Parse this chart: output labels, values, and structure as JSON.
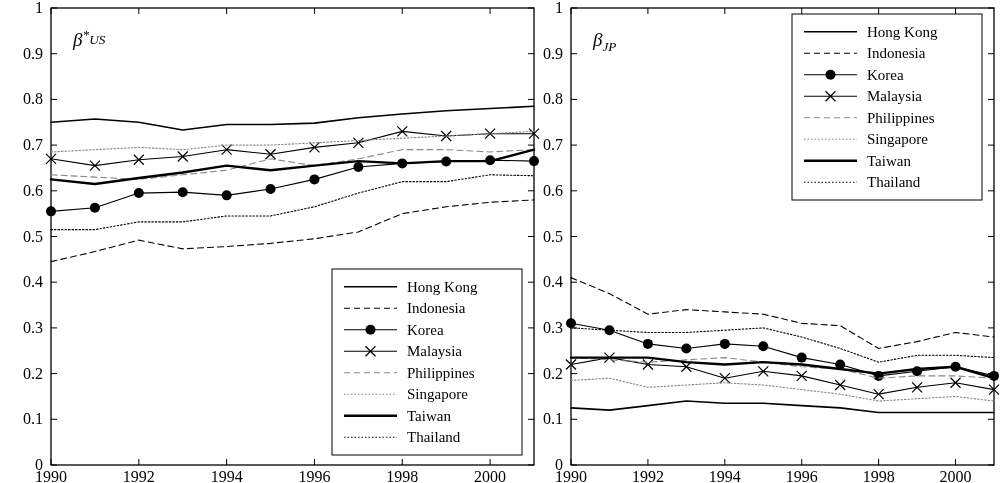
{
  "chart_data": [
    {
      "type": "line",
      "title": "β$^{*}$$_{US}$",
      "x": [
        1990,
        1991,
        1992,
        1993,
        1994,
        1995,
        1996,
        1997,
        1998,
        1999,
        2000,
        2001
      ],
      "xlim": [
        1990,
        2001
      ],
      "xticks": [
        1990,
        1992,
        1994,
        1996,
        1998,
        2000
      ],
      "ylim": [
        0,
        1
      ],
      "yticks": [
        0,
        0.1,
        0.2,
        0.3,
        0.4,
        0.5,
        0.6,
        0.7,
        0.8,
        0.9,
        1
      ],
      "grid": false,
      "legend": "bottom right",
      "series": [
        {
          "name": "Hong Kong",
          "color": "#000000",
          "line_style": "solid",
          "marker": "none",
          "values": [
            0.75,
            0.757,
            0.75,
            0.733,
            0.745,
            0.745,
            0.748,
            0.76,
            0.768,
            0.775,
            0.78,
            0.785
          ]
        },
        {
          "name": "Indonesia",
          "color": "#000000",
          "line_style": "dashed",
          "marker": "none",
          "values": [
            0.445,
            0.467,
            0.492,
            0.473,
            0.478,
            0.485,
            0.495,
            0.51,
            0.55,
            0.565,
            0.575,
            0.58
          ]
        },
        {
          "name": "Korea",
          "color": "#000000",
          "line_style": "solid",
          "marker": "circle",
          "values": [
            0.555,
            0.563,
            0.595,
            0.597,
            0.59,
            0.604,
            0.625,
            0.652,
            0.66,
            0.664,
            0.667,
            0.665
          ]
        },
        {
          "name": "Malaysia",
          "color": "#000000",
          "line_style": "solid",
          "marker": "cross",
          "values": [
            0.67,
            0.655,
            0.668,
            0.675,
            0.69,
            0.68,
            0.695,
            0.705,
            0.73,
            0.72,
            0.725,
            0.725
          ]
        },
        {
          "name": "Philippines",
          "color": "#888888",
          "line_style": "dashed",
          "marker": "none",
          "values": [
            0.635,
            0.63,
            0.625,
            0.635,
            0.645,
            0.67,
            0.655,
            0.67,
            0.69,
            0.69,
            0.685,
            0.69
          ]
        },
        {
          "name": "Singapore",
          "color": "#888888",
          "line_style": "dotted",
          "marker": "none",
          "values": [
            0.685,
            0.69,
            0.695,
            0.69,
            0.7,
            0.7,
            0.705,
            0.71,
            0.715,
            0.72,
            0.725,
            0.73
          ]
        },
        {
          "name": "Taiwan",
          "color": "#000000",
          "line_style": "solid",
          "marker": "none",
          "values": [
            0.625,
            0.615,
            0.628,
            0.64,
            0.655,
            0.645,
            0.655,
            0.665,
            0.66,
            0.665,
            0.665,
            0.69
          ]
        },
        {
          "name": "Thailand",
          "color": "#000000",
          "line_style": "dotted",
          "marker": "none",
          "values": [
            0.515,
            0.515,
            0.532,
            0.532,
            0.545,
            0.545,
            0.565,
            0.595,
            0.62,
            0.62,
            0.635,
            0.633
          ]
        }
      ]
    },
    {
      "type": "line",
      "title": "β$_{JP}$",
      "x": [
        1990,
        1991,
        1992,
        1993,
        1994,
        1995,
        1996,
        1997,
        1998,
        1999,
        2000,
        2001
      ],
      "xlim": [
        1990,
        2001
      ],
      "xticks": [
        1990,
        1992,
        1994,
        1996,
        1998,
        2000
      ],
      "ylim": [
        0,
        1
      ],
      "yticks": [
        0,
        0.1,
        0.2,
        0.3,
        0.4,
        0.5,
        0.6,
        0.7,
        0.8,
        0.9,
        1
      ],
      "grid": false,
      "legend": "top right",
      "series": [
        {
          "name": "Hong Kong",
          "color": "#000000",
          "line_style": "solid",
          "marker": "none",
          "values": [
            0.125,
            0.12,
            0.13,
            0.14,
            0.135,
            0.135,
            0.13,
            0.125,
            0.115,
            0.115,
            0.115,
            0.115
          ]
        },
        {
          "name": "Indonesia",
          "color": "#000000",
          "line_style": "dashed",
          "marker": "none",
          "values": [
            0.41,
            0.375,
            0.33,
            0.34,
            0.335,
            0.33,
            0.31,
            0.305,
            0.255,
            0.27,
            0.29,
            0.28
          ]
        },
        {
          "name": "Korea",
          "color": "#000000",
          "line_style": "solid",
          "marker": "circle",
          "values": [
            0.31,
            0.295,
            0.265,
            0.255,
            0.265,
            0.26,
            0.235,
            0.22,
            0.195,
            0.205,
            0.215,
            0.195
          ]
        },
        {
          "name": "Malaysia",
          "color": "#000000",
          "line_style": "solid",
          "marker": "cross",
          "values": [
            0.22,
            0.235,
            0.22,
            0.215,
            0.19,
            0.205,
            0.195,
            0.175,
            0.155,
            0.17,
            0.18,
            0.165
          ]
        },
        {
          "name": "Philippines",
          "color": "#888888",
          "line_style": "dashed",
          "marker": "none",
          "values": [
            0.235,
            0.23,
            0.225,
            0.23,
            0.235,
            0.225,
            0.215,
            0.21,
            0.19,
            0.195,
            0.195,
            0.19
          ]
        },
        {
          "name": "Singapore",
          "color": "#888888",
          "line_style": "dotted",
          "marker": "none",
          "values": [
            0.185,
            0.19,
            0.17,
            0.175,
            0.18,
            0.175,
            0.165,
            0.155,
            0.14,
            0.145,
            0.15,
            0.14
          ]
        },
        {
          "name": "Taiwan",
          "color": "#000000",
          "line_style": "solid",
          "marker": "none",
          "values": [
            0.235,
            0.235,
            0.235,
            0.225,
            0.22,
            0.225,
            0.22,
            0.21,
            0.2,
            0.21,
            0.215,
            0.19
          ]
        },
        {
          "name": "Thailand",
          "color": "#000000",
          "line_style": "dotted",
          "marker": "none",
          "values": [
            0.3,
            0.295,
            0.29,
            0.29,
            0.295,
            0.3,
            0.28,
            0.255,
            0.225,
            0.24,
            0.24,
            0.235
          ]
        }
      ]
    }
  ]
}
